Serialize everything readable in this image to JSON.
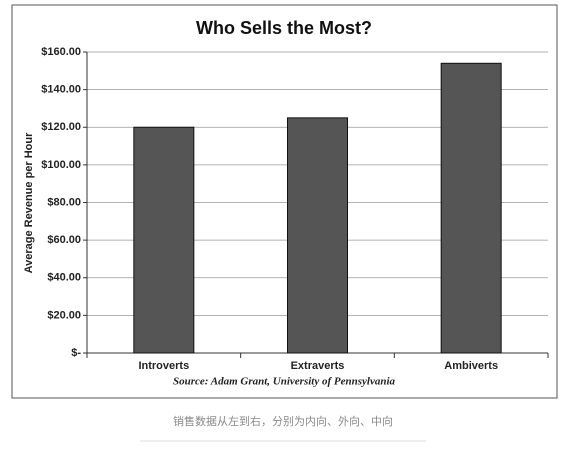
{
  "chart_data": {
    "type": "bar",
    "title": "Who Sells the Most?",
    "y_label": "Average Revenue per Hour",
    "source": "Source: Adam Grant, University of Pennsylvania",
    "categories": [
      "Introverts",
      "Extraverts",
      "Ambiverts"
    ],
    "values": [
      120,
      125,
      154
    ],
    "color": "#555555",
    "ylim": [
      0,
      160
    ],
    "yticks": [
      {
        "value": 0,
        "label": "$-"
      },
      {
        "value": 20,
        "label": "$20.00"
      },
      {
        "value": 40,
        "label": "$40.00"
      },
      {
        "value": 60,
        "label": "$60.00"
      },
      {
        "value": 80,
        "label": "$80.00"
      },
      {
        "value": 100,
        "label": "$100.00"
      },
      {
        "value": 120,
        "label": "$120.00"
      },
      {
        "value": 140,
        "label": "$140.00"
      },
      {
        "value": 160,
        "label": "$160.00"
      }
    ],
    "grid": true
  },
  "caption": "销售数据从左到右，分别为内向、外向、中向"
}
